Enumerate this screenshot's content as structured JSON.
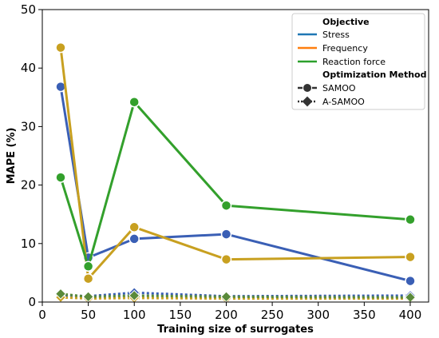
{
  "chart_data": {
    "type": "line",
    "title": "",
    "xlabel": "Training size of surrogates",
    "ylabel": "MAPE (%)",
    "xlim": [
      0,
      420
    ],
    "ylim": [
      0,
      50
    ],
    "xticks": [
      "0",
      "50",
      "100",
      "150",
      "200",
      "250",
      "300",
      "350",
      "400"
    ],
    "yticks": [
      "0",
      "10",
      "20",
      "30",
      "40",
      "50"
    ],
    "x": [
      20,
      50,
      100,
      200,
      400
    ],
    "grid": false,
    "legend_position": "top-right",
    "legend": {
      "objective_title": "Objective",
      "method_title": "Optimization Method",
      "objectives": [
        {
          "name": "Stress",
          "color": "#1f77b4"
        },
        {
          "name": "Frequency",
          "color": "#ff7f0e"
        },
        {
          "name": "Reaction force",
          "color": "#2ca02c"
        }
      ],
      "methods": [
        {
          "name": "SAMOO",
          "marker": "circle",
          "dash": "solid"
        },
        {
          "name": "A-SAMOO",
          "marker": "diamond",
          "dash": "dotted"
        }
      ]
    },
    "series": [
      {
        "name": "Stress",
        "method": "SAMOO",
        "color": "#3a5fb5",
        "values": [
          36.8,
          7.6,
          10.8,
          11.6,
          3.6
        ]
      },
      {
        "name": "Frequency",
        "method": "SAMOO",
        "color": "#c8a020",
        "values": [
          43.5,
          4.0,
          12.8,
          7.3,
          7.7
        ]
      },
      {
        "name": "Reaction force",
        "method": "SAMOO",
        "color": "#33a02c",
        "values": [
          21.3,
          6.1,
          34.2,
          16.5,
          14.1
        ]
      },
      {
        "name": "Stress",
        "method": "A-SAMOO",
        "color": "#3a5fb5",
        "values": [
          1.2,
          1.0,
          1.6,
          1.0,
          1.1
        ]
      },
      {
        "name": "Frequency",
        "method": "A-SAMOO",
        "color": "#c8a020",
        "values": [
          0.8,
          0.6,
          0.7,
          0.6,
          0.6
        ]
      },
      {
        "name": "Reaction force",
        "method": "A-SAMOO",
        "color": "#5a8a3a",
        "values": [
          1.4,
          0.9,
          1.1,
          0.9,
          0.8
        ]
      }
    ]
  }
}
